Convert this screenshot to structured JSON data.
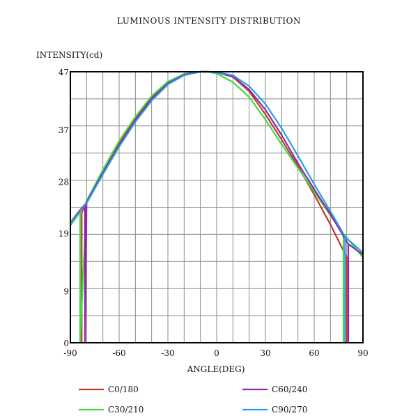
{
  "chart_data": {
    "type": "line",
    "title": "LUMINOUS INTENSITY DISTRIBUTION",
    "xlabel": "ANGLE(DEG)",
    "ylabel": "INTENSITY(cd)",
    "xlim": [
      -90,
      90
    ],
    "ylim": [
      0,
      47
    ],
    "x_ticks": [
      -90,
      -60,
      -30,
      0,
      30,
      60,
      90
    ],
    "y_ticks": [
      0,
      9,
      19,
      28,
      37,
      47
    ],
    "grid": true,
    "legend_position": "bottom",
    "series": [
      {
        "name": "C0/180",
        "color": "#c0392b",
        "x": [
          -83,
          -83,
          -80,
          -70,
          -60,
          -50,
          -40,
          -30,
          -20,
          -10,
          -5,
          0,
          10,
          20,
          30,
          40,
          50,
          60,
          70,
          80,
          80
        ],
        "y": [
          0,
          22.5,
          24.5,
          29.5,
          34.5,
          38.8,
          42.5,
          45.2,
          46.6,
          47,
          47,
          46.9,
          46.1,
          43.6,
          39.6,
          35.2,
          30.6,
          25.7,
          20.5,
          14.8,
          0
        ]
      },
      {
        "name": "C30/210",
        "color": "#3ddc3d",
        "x": [
          -90,
          -85,
          -84,
          -84,
          -80,
          -70,
          -60,
          -50,
          -40,
          -30,
          -20,
          -10,
          -5,
          0,
          10,
          20,
          30,
          40,
          50,
          60,
          70,
          78,
          78,
          78,
          90
        ],
        "y": [
          20.3,
          22.3,
          22.9,
          0,
          24.6,
          30.0,
          35.0,
          39.2,
          42.8,
          45.3,
          46.6,
          47,
          47,
          46.7,
          45.2,
          42.6,
          38.7,
          34.4,
          30.3,
          26.2,
          22.1,
          18.9,
          0,
          18.9,
          14.8
        ]
      },
      {
        "name": "C60/240",
        "color": "#8e24aa",
        "x": [
          -90,
          -85,
          -81,
          -81,
          -80,
          -70,
          -60,
          -50,
          -40,
          -30,
          -20,
          -10,
          -5,
          0,
          10,
          20,
          30,
          40,
          50,
          60,
          70,
          81,
          81,
          81,
          90
        ],
        "y": [
          20.8,
          22.7,
          24.0,
          0,
          24.4,
          29.5,
          34.2,
          38.6,
          42.3,
          45.0,
          46.5,
          47,
          47,
          46.9,
          46.2,
          43.9,
          40.4,
          36.0,
          31.1,
          26.6,
          22.3,
          17.1,
          0,
          17.1,
          15.3
        ]
      },
      {
        "name": "C90/270",
        "color": "#2a9de0",
        "x": [
          -90,
          -85,
          -80,
          -70,
          -60,
          -50,
          -40,
          -30,
          -20,
          -10,
          -5,
          0,
          10,
          20,
          30,
          40,
          50,
          60,
          70,
          79,
          79,
          79,
          90
        ],
        "y": [
          20.6,
          22.5,
          24.2,
          29.2,
          34.0,
          38.3,
          42.0,
          44.8,
          46.4,
          47,
          47,
          46.9,
          46.4,
          44.5,
          41.4,
          37.2,
          32.4,
          27.5,
          22.8,
          18.4,
          0,
          18.4,
          15.6
        ]
      }
    ]
  }
}
